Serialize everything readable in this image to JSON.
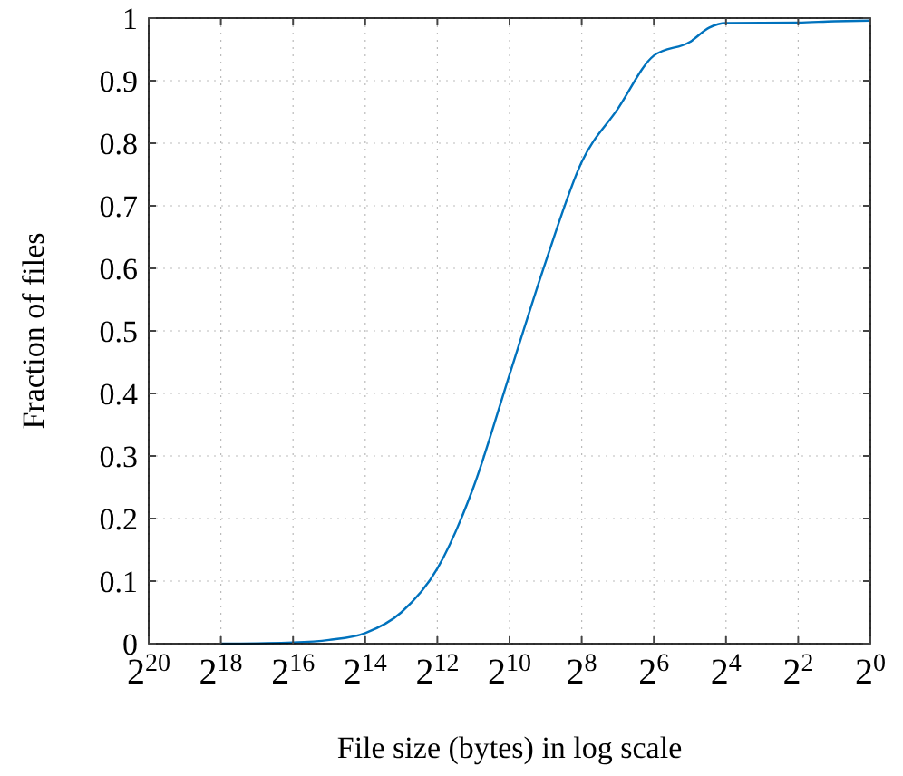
{
  "chart_data": {
    "type": "line",
    "xlabel": "File size (bytes) in log scale",
    "ylabel": "Fraction of files",
    "log": "x",
    "grid": true,
    "marker": "none",
    "line_style": "solid",
    "xlim": [
      1048576,
      1
    ],
    "xticks": [
      {
        "value": 1048576,
        "label": "2$^{20}$"
      },
      {
        "value": 262144,
        "label": "2$^{18}$"
      },
      {
        "value": 65536,
        "label": "2$^{16}$"
      },
      {
        "value": 16384,
        "label": "2$^{14}$"
      },
      {
        "value": 4096,
        "label": "2$^{12}$"
      },
      {
        "value": 1024,
        "label": "2$^{10}$"
      },
      {
        "value": 256,
        "label": "2$^{8}$"
      },
      {
        "value": 64,
        "label": "2$^{6}$"
      },
      {
        "value": 16,
        "label": "2$^{4}$"
      },
      {
        "value": 4,
        "label": "2$^{2}$"
      },
      {
        "value": 1,
        "label": "2$^{0}$"
      }
    ],
    "ylim": [
      0,
      1
    ],
    "yticks": [
      0,
      0.1,
      0.2,
      0.3,
      0.4,
      0.5,
      0.6,
      0.7,
      0.8,
      0.9,
      1
    ],
    "series": [
      {
        "color": "#0072bd",
        "x": [
          262144,
          65536,
          32768,
          16384,
          8192,
          4096,
          2048,
          1024,
          512,
          256,
          128,
          64,
          32,
          22,
          16,
          4,
          2,
          1
        ],
        "values": [
          0,
          0.002,
          0.006,
          0.017,
          0.05,
          0.12,
          0.25,
          0.43,
          0.61,
          0.77,
          0.855,
          0.94,
          0.962,
          0.985,
          0.992,
          0.993,
          0.995,
          0.996
        ]
      }
    ]
  }
}
